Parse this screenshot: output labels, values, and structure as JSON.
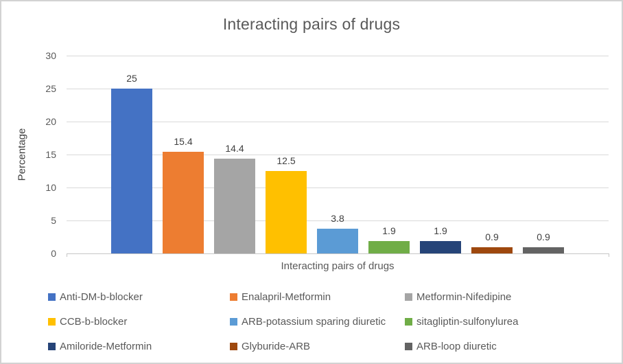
{
  "chart_data": {
    "type": "bar",
    "title": "Interacting pairs of drugs",
    "xlabel": "Interacting pairs of drugs",
    "ylabel": "Percentage",
    "ylim": [
      0,
      30
    ],
    "yticks": [
      0,
      5,
      10,
      15,
      20,
      25,
      30
    ],
    "grid": true,
    "legend_position": "bottom",
    "background_color": "#ffffff",
    "gridline_color": "#d9d9d9",
    "text_color": "#595959",
    "series": [
      {
        "label": "Anti-DM-b-blocker",
        "value": 25,
        "value_label": "25",
        "color": "#4472C4"
      },
      {
        "label": "Enalapril-Metformin",
        "value": 15.4,
        "value_label": "15.4",
        "color": "#ED7D31"
      },
      {
        "label": "Metformin-Nifedipine",
        "value": 14.4,
        "value_label": "14.4",
        "color": "#A5A5A5"
      },
      {
        "label": "CCB-b-blocker",
        "value": 12.5,
        "value_label": "12.5",
        "color": "#FFC000"
      },
      {
        "label": "ARB-potassium sparing diuretic",
        "value": 3.8,
        "value_label": "3.8",
        "color": "#5B9BD5"
      },
      {
        "label": "sitagliptin-sulfonylurea",
        "value": 1.9,
        "value_label": "1.9",
        "color": "#70AD47"
      },
      {
        "label": "Amiloride-Metformin",
        "value": 1.9,
        "value_label": "1.9",
        "color": "#264478"
      },
      {
        "label": "Glyburide-ARB",
        "value": 0.9,
        "value_label": "0.9",
        "color": "#9E480E"
      },
      {
        "label": "ARB-loop diuretic",
        "value": 0.9,
        "value_label": "0.9",
        "color": "#636363"
      }
    ]
  }
}
